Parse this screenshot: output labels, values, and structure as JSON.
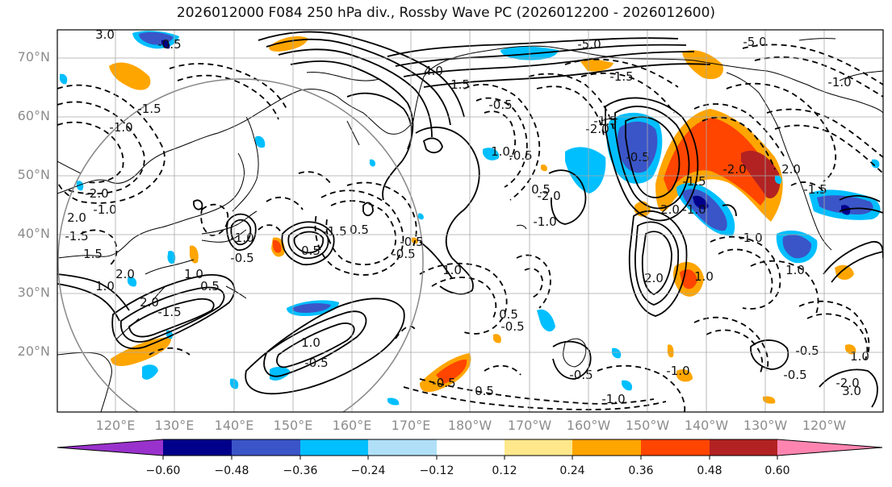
{
  "title": "2026012000 F084 250 hPa div., Rossby Wave PC (2026012200 - 2026012600)",
  "lat_labels": [
    "70°N",
    "60°N",
    "50°N",
    "40°N",
    "30°N",
    "20°N"
  ],
  "lon_labels": [
    "120°E",
    "130°E",
    "140°E",
    "150°E",
    "160°E",
    "170°E",
    "180°W",
    "170°W",
    "160°W",
    "150°W",
    "140°W",
    "130°W",
    "120°W"
  ],
  "colorbar": {
    "colors": [
      "#9932CC",
      "#00008B",
      "#3A55C8",
      "#00BFFF",
      "#B0E0F7",
      "#FFFFFF",
      "#FFE88C",
      "#FFA500",
      "#FF4500",
      "#B22222",
      "#FF85B0"
    ],
    "tick_labels": [
      "−0.60",
      "−0.48",
      "−0.36",
      "−0.24",
      "−0.12",
      "0.12",
      "0.24",
      "0.36",
      "0.48",
      "0.60"
    ]
  },
  "contour_labels": [
    "3.0",
    "-0.5",
    "-1.5",
    "-1.0",
    "4.0",
    "-5.0",
    "-5.0",
    "-1.5",
    "-0.5",
    "1.5",
    "-1.5",
    "1.0",
    "0.5",
    "-2.0",
    "2.0",
    "-1.0",
    "-1.0",
    "-1.5",
    "-2.0",
    "2.0",
    "-1.5",
    "0.5",
    "0.5",
    "-0.5",
    "1.0",
    "1.0",
    "-0.5",
    "2.0",
    "-1.5",
    "0.5",
    "-1.0",
    "-0.5",
    "1.0",
    "1.5",
    "2.0",
    "1.0",
    "-0.5",
    "-1.0",
    "-2.0",
    "-2.0",
    "-1.0",
    "2.0",
    "-1.5",
    "-0.5",
    "-0.5",
    "0.5",
    "-0.5",
    "2.0",
    "1.0",
    "-1.0",
    "1.0",
    "-0.5",
    "-1.0",
    "-1.0",
    "-0.5",
    "1.0",
    "-2.0",
    "3.0",
    "-1.5",
    "-0.5",
    "-0.5",
    "0.5"
  ]
}
